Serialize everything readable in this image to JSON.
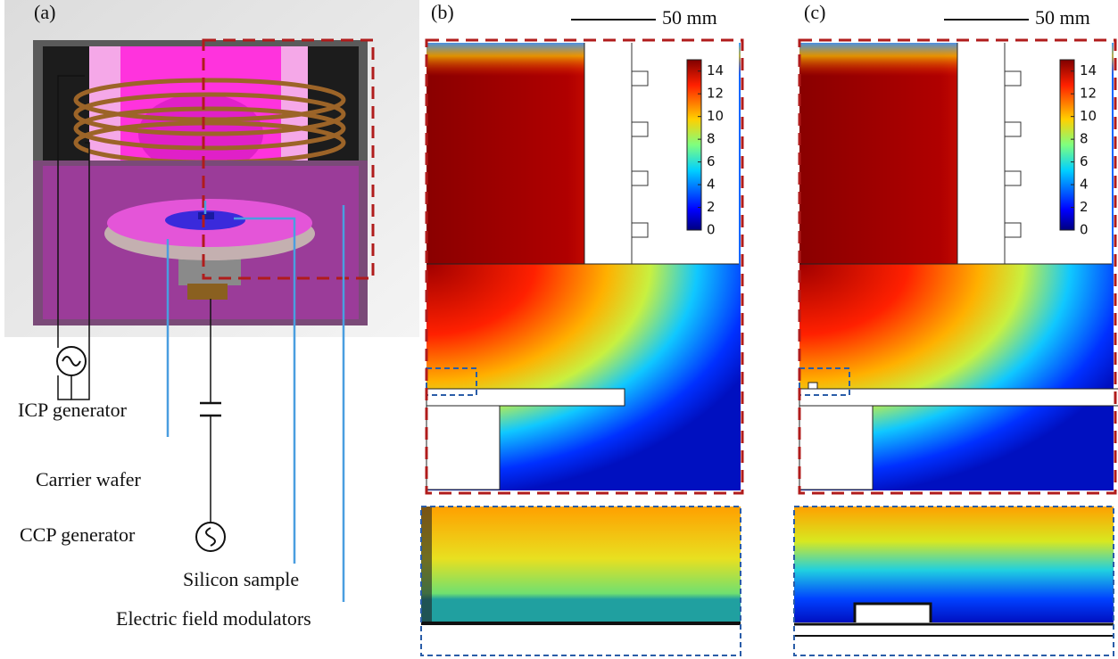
{
  "panels": [
    {
      "label": "(a)",
      "annotations": [
        "ICP generator",
        "Carrier wafer",
        "CCP generator",
        "Silicon sample",
        "Electric field modulators"
      ]
    },
    {
      "label": "(b)",
      "scale_bar": "50 mm",
      "colorbar": {
        "range": [
          0,
          15
        ],
        "ticks": [
          0,
          2,
          4,
          6,
          8,
          10,
          12,
          14
        ]
      }
    },
    {
      "label": "(c)",
      "scale_bar": "50 mm",
      "colorbar": {
        "range": [
          0,
          15
        ],
        "ticks": [
          0,
          2,
          4,
          6,
          8,
          10,
          12,
          14
        ]
      }
    }
  ]
}
